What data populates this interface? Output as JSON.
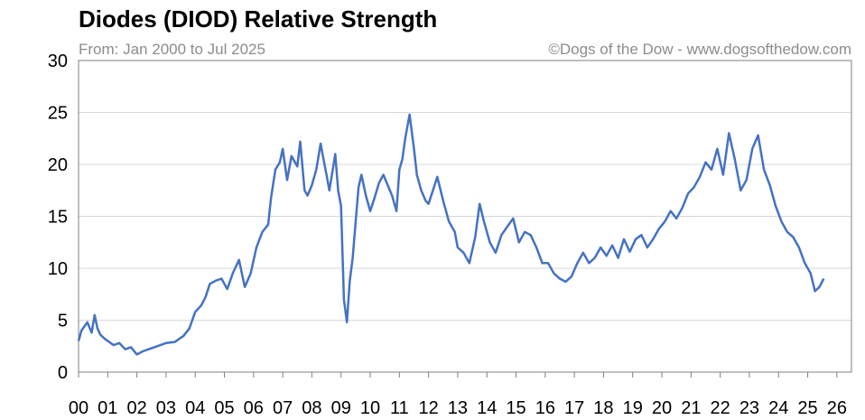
{
  "chart_data": {
    "type": "line",
    "title": "Diodes (DIOD) Relative Strength",
    "subtitle": "From: Jan 2000 to Jul 2025",
    "credit": "©Dogs of the Dow - www.dogsofthedow.com",
    "xlabel": "",
    "ylabel": "",
    "xlim": [
      2000,
      2026.5
    ],
    "ylim": [
      0,
      30
    ],
    "y_ticks": [
      "0",
      "5",
      "10",
      "15",
      "20",
      "25",
      "30"
    ],
    "x_ticks": [
      "00",
      "01",
      "02",
      "03",
      "04",
      "05",
      "06",
      "07",
      "08",
      "09",
      "10",
      "11",
      "12",
      "13",
      "14",
      "15",
      "16",
      "17",
      "18",
      "19",
      "20",
      "21",
      "22",
      "23",
      "24",
      "25",
      "26"
    ],
    "grid": true,
    "line_color": "#4472c4",
    "series": [
      {
        "x": [
          2000.0,
          2000.1,
          2000.3,
          2000.45,
          2000.55,
          2000.65,
          2000.75,
          2000.9,
          2001.0,
          2001.2,
          2001.4,
          2001.6,
          2001.8,
          2002.0,
          2002.2,
          2002.4,
          2002.7,
          2003.0,
          2003.3,
          2003.6,
          2003.8,
          2004.0,
          2004.2,
          2004.35,
          2004.5,
          2004.7,
          2004.9,
          2005.1,
          2005.3,
          2005.5,
          2005.7,
          2005.9,
          2006.1,
          2006.3,
          2006.5,
          2006.6,
          2006.75,
          2006.9,
          2007.0,
          2007.15,
          2007.3,
          2007.5,
          2007.6,
          2007.75,
          2007.85,
          2008.0,
          2008.15,
          2008.3,
          2008.4,
          2008.5,
          2008.6,
          2008.7,
          2008.8,
          2008.9,
          2009.0,
          2009.1,
          2009.2,
          2009.3,
          2009.4,
          2009.5,
          2009.6,
          2009.7,
          2009.85,
          2010.0,
          2010.15,
          2010.3,
          2010.45,
          2010.6,
          2010.75,
          2010.9,
          2011.0,
          2011.1,
          2011.2,
          2011.35,
          2011.5,
          2011.6,
          2011.75,
          2011.9,
          2012.0,
          2012.15,
          2012.3,
          2012.5,
          2012.7,
          2012.9,
          2013.0,
          2013.2,
          2013.4,
          2013.6,
          2013.75,
          2013.9,
          2014.1,
          2014.3,
          2014.5,
          2014.7,
          2014.9,
          2015.1,
          2015.3,
          2015.5,
          2015.7,
          2015.9,
          2016.1,
          2016.3,
          2016.5,
          2016.7,
          2016.9,
          2017.1,
          2017.3,
          2017.5,
          2017.7,
          2017.9,
          2018.1,
          2018.3,
          2018.5,
          2018.7,
          2018.9,
          2019.1,
          2019.3,
          2019.5,
          2019.7,
          2019.9,
          2020.1,
          2020.3,
          2020.5,
          2020.7,
          2020.9,
          2021.1,
          2021.3,
          2021.5,
          2021.7,
          2021.9,
          2022.1,
          2022.3,
          2022.5,
          2022.7,
          2022.9,
          2023.1,
          2023.3,
          2023.5,
          2023.7,
          2023.9,
          2024.1,
          2024.3,
          2024.5,
          2024.7,
          2024.9,
          2025.1,
          2025.25,
          2025.4,
          2025.55
        ],
        "values": [
          3.0,
          4.0,
          4.8,
          3.8,
          5.5,
          4.2,
          3.6,
          3.2,
          3.0,
          2.6,
          2.8,
          2.2,
          2.4,
          1.7,
          2.0,
          2.2,
          2.5,
          2.8,
          2.9,
          3.5,
          4.2,
          5.8,
          6.4,
          7.2,
          8.5,
          8.8,
          9.0,
          8.0,
          9.6,
          10.8,
          8.2,
          9.5,
          12.0,
          13.5,
          14.2,
          16.8,
          19.5,
          20.2,
          21.5,
          18.5,
          20.8,
          19.8,
          22.2,
          17.5,
          17.0,
          18.0,
          19.5,
          22.0,
          20.5,
          19.0,
          17.5,
          19.2,
          21.0,
          17.5,
          16.0,
          7.0,
          4.8,
          8.8,
          11.0,
          14.5,
          17.8,
          19.0,
          17.0,
          15.5,
          16.8,
          18.2,
          19.0,
          18.0,
          17.0,
          15.5,
          19.5,
          20.5,
          22.5,
          24.8,
          21.5,
          19.0,
          17.5,
          16.5,
          16.2,
          17.5,
          18.8,
          16.5,
          14.5,
          13.5,
          12.0,
          11.5,
          10.5,
          13.0,
          16.2,
          14.5,
          12.5,
          11.5,
          13.2,
          14.0,
          14.8,
          12.5,
          13.5,
          13.2,
          12.0,
          10.5,
          10.5,
          9.5,
          9.0,
          8.7,
          9.2,
          10.5,
          11.5,
          10.5,
          11.0,
          12.0,
          11.2,
          12.2,
          11.0,
          12.8,
          11.6,
          12.8,
          13.2,
          12.0,
          12.8,
          13.8,
          14.5,
          15.5,
          14.8,
          15.8,
          17.2,
          17.8,
          18.8,
          20.2,
          19.5,
          21.5,
          19.0,
          23.0,
          20.5,
          17.5,
          18.5,
          21.5,
          22.8,
          19.5,
          18.0,
          16.0,
          14.5,
          13.5,
          13.0,
          12.0,
          10.5,
          9.5,
          7.8,
          8.2,
          9.0
        ]
      }
    ]
  }
}
